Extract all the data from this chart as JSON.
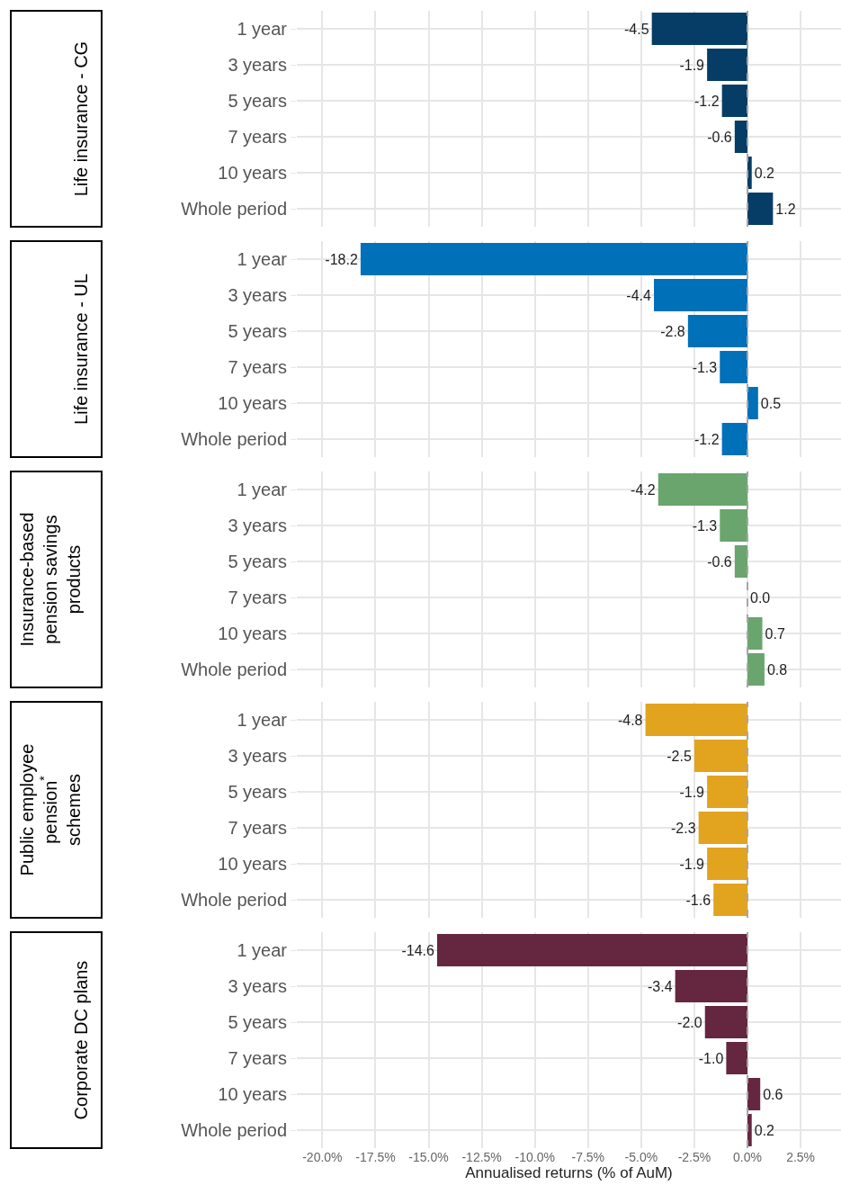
{
  "chart_data": [
    {
      "type": "bar",
      "orientation": "horizontal",
      "title": "Life insurance - CG",
      "categories": [
        "1 year",
        "3 years",
        "5 years",
        "7 years",
        "10 years",
        "Whole period"
      ],
      "values": [
        -4.5,
        -1.9,
        -1.2,
        -0.6,
        0.2,
        1.2
      ],
      "color": "#063d66",
      "data_labels": true,
      "xlim": [
        -21.2,
        4.4
      ],
      "xticks": [
        -20,
        -17.5,
        -15,
        -12.5,
        -10,
        -7.5,
        -5,
        -2.5,
        0,
        2.5
      ],
      "tick_labels": "y",
      "grid": true,
      "legend": false,
      "ref_lines": [
        {
          "axis": "x",
          "value": 0,
          "color": "#a6a6a6",
          "line_style": "dashed"
        }
      ]
    },
    {
      "type": "bar",
      "orientation": "horizontal",
      "title": "Life insurance - UL",
      "categories": [
        "1 year",
        "3 years",
        "5 years",
        "7 years",
        "10 years",
        "Whole period"
      ],
      "values": [
        -18.2,
        -4.4,
        -2.8,
        -1.3,
        0.5,
        -1.2
      ],
      "color": "#0070b8",
      "data_labels": true,
      "xlim": [
        -21.2,
        4.4
      ],
      "xticks": [
        -20,
        -17.5,
        -15,
        -12.5,
        -10,
        -7.5,
        -5,
        -2.5,
        0,
        2.5
      ],
      "tick_labels": "y",
      "grid": true,
      "legend": false,
      "ref_lines": [
        {
          "axis": "x",
          "value": 0,
          "color": "#a6a6a6",
          "line_style": "dashed"
        }
      ]
    },
    {
      "type": "bar",
      "orientation": "horizontal",
      "title": "Insurance-based\npension savings\nproducts",
      "categories": [
        "1 year",
        "3 years",
        "5 years",
        "7 years",
        "10 years",
        "Whole period"
      ],
      "values": [
        -4.2,
        -1.3,
        -0.6,
        0.0,
        0.7,
        0.8
      ],
      "value_labels": [
        "-4.2",
        "-1.3",
        "-0.6",
        "0.0",
        "0.7",
        "0.8"
      ],
      "color": "#6aa56e",
      "xlim": [
        -21.2,
        4.4
      ],
      "xticks": [
        -20,
        -17.5,
        -15,
        -12.5,
        -10,
        -7.5,
        -5,
        -2.5,
        0,
        2.5
      ],
      "tick_labels": "y",
      "grid": true,
      "legend": false,
      "ref_lines": [
        {
          "axis": "x",
          "value": 0,
          "color": "#a6a6a6",
          "line_style": "dashed"
        }
      ]
    },
    {
      "type": "bar",
      "orientation": "horizontal",
      "title": "Public employee\npension$^{*}$\nschemes",
      "categories": [
        "1 year",
        "3 years",
        "5 years",
        "7 years",
        "10 years",
        "Whole period"
      ],
      "values": [
        -4.8,
        -2.5,
        -1.9,
        -2.3,
        -1.9,
        -1.6
      ],
      "color": "#e2a31e",
      "data_labels": true,
      "xlim": [
        -21.2,
        4.4
      ],
      "xticks": [
        -20,
        -17.5,
        -15,
        -12.5,
        -10,
        -7.5,
        -5,
        -2.5,
        0,
        2.5
      ],
      "tick_labels": "y",
      "grid": true,
      "legend": false,
      "ref_lines": [
        {
          "axis": "x",
          "value": 0,
          "color": "#a6a6a6",
          "line_style": "dashed"
        }
      ]
    },
    {
      "type": "bar",
      "orientation": "horizontal",
      "title": "Corporate DC plans",
      "categories": [
        "1 year",
        "3 years",
        "5 years",
        "7 years",
        "10 years",
        "Whole period"
      ],
      "values": [
        -14.6,
        -3.4,
        -2.0,
        -1.0,
        0.6,
        0.2
      ],
      "value_labels": [
        "-14.6",
        "-3.4",
        "-2.0",
        "-1.0",
        "0.6",
        "0.2"
      ],
      "color": "#652640",
      "xlabel": "Annualised returns (% of AuM)",
      "xlim": [
        -21.2,
        4.4
      ],
      "xticks": [
        {
          "value": -20,
          "label": "-20.0%"
        },
        {
          "value": -17.5,
          "label": "-17.5%"
        },
        {
          "value": -15,
          "label": "-15.0%"
        },
        {
          "value": -12.5,
          "label": "-12.5%"
        },
        {
          "value": -10,
          "label": "-10.0%"
        },
        {
          "value": -7.5,
          "label": "-7.5%"
        },
        {
          "value": -5,
          "label": "-5.0%"
        },
        {
          "value": -2.5,
          "label": "-2.5%"
        },
        {
          "value": 0,
          "label": "0.0%"
        },
        {
          "value": 2.5,
          "label": "2.5%"
        }
      ],
      "grid": true,
      "legend": false,
      "ref_lines": [
        {
          "axis": "x",
          "value": 0,
          "color": "#a6a6a6",
          "line_style": "dashed"
        }
      ]
    }
  ]
}
